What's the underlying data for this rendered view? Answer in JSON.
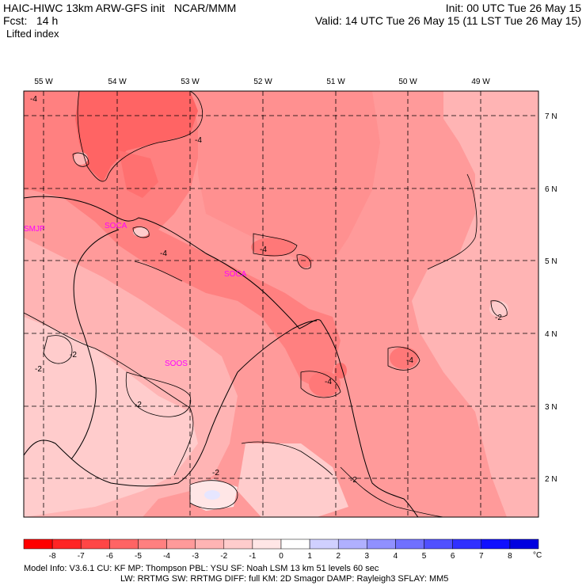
{
  "header": {
    "model_title": "HAIC-HIWC 13km ARW-GFS init",
    "org": "NCAR/MMM",
    "fcst_label": "Fcst:",
    "fcst_value": "14 h",
    "field_name": "Lifted index",
    "init": "Init: 00 UTC Tue 26 May 15",
    "valid": "Valid: 14 UTC Tue 26 May 15 (11 LST Tue 26 May 15)"
  },
  "map": {
    "lon_labels": [
      "55 W",
      "54 W",
      "53 W",
      "52 W",
      "51 W",
      "50 W",
      "49 W"
    ],
    "lat_labels": [
      "7 N",
      "6 N",
      "5 N",
      "4 N",
      "3 N",
      "2 N"
    ],
    "stations": [
      "SMJP",
      "SOCA",
      "SOCA",
      "SOOS"
    ],
    "contour_labels": [
      "-4",
      "-4",
      "-4",
      "-4",
      "-4",
      "-4",
      "-2",
      "-2",
      "-2",
      "-2",
      "-2",
      "-2",
      "-2"
    ]
  },
  "colorbar": {
    "ticks": [
      "-8",
      "-7",
      "-6",
      "-5",
      "-4",
      "-3",
      "-2",
      "-1",
      "0",
      "1",
      "2",
      "3",
      "4",
      "5",
      "6",
      "7",
      "8"
    ],
    "unit": "°C",
    "colors": [
      "#ff0000",
      "#ff2424",
      "#ff4646",
      "#ff6464",
      "#ff8080",
      "#ff9a9a",
      "#ffb4b4",
      "#ffcccc",
      "#ffe6e6",
      "#ffffff",
      "#d0d0ff",
      "#b0b0ff",
      "#9090ff",
      "#7070ff",
      "#5050ff",
      "#3030ff",
      "#1010ff",
      "#0000e0"
    ]
  },
  "footer": {
    "line1": "Model Info: V3.6.1     CU: KF       MP: Thompson     PBL: YSU        SF: Noah LSM      13 km    51 levels   60 sec",
    "line2": "LW: RRTMG    SW: RRTMG   DIFF: full    KM: 2D Smagor DAMP: Rayleigh3   SFLAY: MM5"
  }
}
